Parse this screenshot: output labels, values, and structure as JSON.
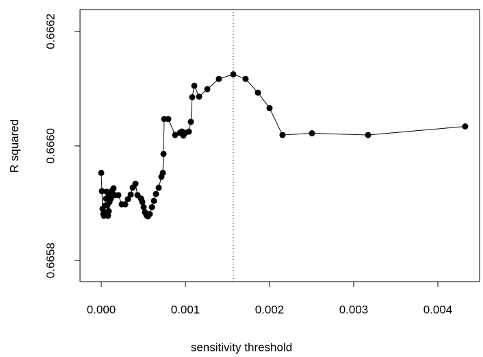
{
  "chart_data": {
    "type": "line",
    "x_label": "sensitivity threshold",
    "y_label": "R squared",
    "x": [
      0.0,
      8e-06,
      1.6e-05,
      2.4e-05,
      3.3e-05,
      4.1e-05,
      4.9e-05,
      5.7e-05,
      6.5e-05,
      7.3e-05,
      8.1e-05,
      8.9e-05,
      9.8e-05,
      0.000106,
      0.000114,
      0.00013,
      0.000146,
      0.000163,
      0.000203,
      0.000244,
      0.000285,
      0.000317,
      0.00035,
      0.000374,
      0.000407,
      0.000431,
      0.000472,
      0.000488,
      0.000504,
      0.00052,
      0.000537,
      0.000553,
      0.000577,
      0.000602,
      0.000626,
      0.00065,
      0.000683,
      0.000715,
      0.000732,
      0.00074,
      0.000748,
      0.000797,
      0.000878,
      0.000935,
      0.000959,
      0.000976,
      0.001,
      0.001041,
      0.001065,
      0.001081,
      0.001106,
      0.001163,
      0.00126,
      0.001398,
      0.001569,
      0.001715,
      0.001862,
      0.002,
      0.002154,
      0.002504,
      0.003171,
      0.004325
    ],
    "series": [
      {
        "color": "#000000",
        "values": [
          0.665953,
          0.665921,
          0.66589,
          0.665881,
          0.665878,
          0.665884,
          0.665896,
          0.665908,
          0.66592,
          0.665896,
          0.665878,
          0.665886,
          0.665902,
          0.665914,
          0.665908,
          0.665922,
          0.665926,
          0.665914,
          0.665914,
          0.665898,
          0.665898,
          0.665907,
          0.665915,
          0.665927,
          0.665934,
          0.665914,
          0.665908,
          0.665902,
          0.665893,
          0.665884,
          0.665879,
          0.665877,
          0.665881,
          0.665893,
          0.665904,
          0.665916,
          0.665927,
          0.665946,
          0.665953,
          0.665986,
          0.666047,
          0.666047,
          0.666019,
          0.666023,
          0.666025,
          0.666018,
          0.666023,
          0.666025,
          0.666042,
          0.666085,
          0.666105,
          0.666086,
          0.666099,
          0.666117,
          0.666125,
          0.666117,
          0.666093,
          0.666066,
          0.666019,
          0.666022,
          0.666019,
          0.666034
        ]
      }
    ],
    "reference_x": 0.001569,
    "xlim": [
      -0.000252,
      0.004496
    ],
    "ylim": [
      0.665763,
      0.666238
    ],
    "xticks": [
      {
        "value": 0,
        "label": "0.000"
      },
      {
        "value": 0.001,
        "label": "0.001"
      },
      {
        "value": 0.002,
        "label": "0.002"
      },
      {
        "value": 0.003,
        "label": "0.003"
      },
      {
        "value": 0.004,
        "label": "0.004"
      }
    ],
    "yticks": [
      0.6658,
      {
        "value": 0.666,
        "label": "0.6660"
      },
      0.6662
    ]
  }
}
